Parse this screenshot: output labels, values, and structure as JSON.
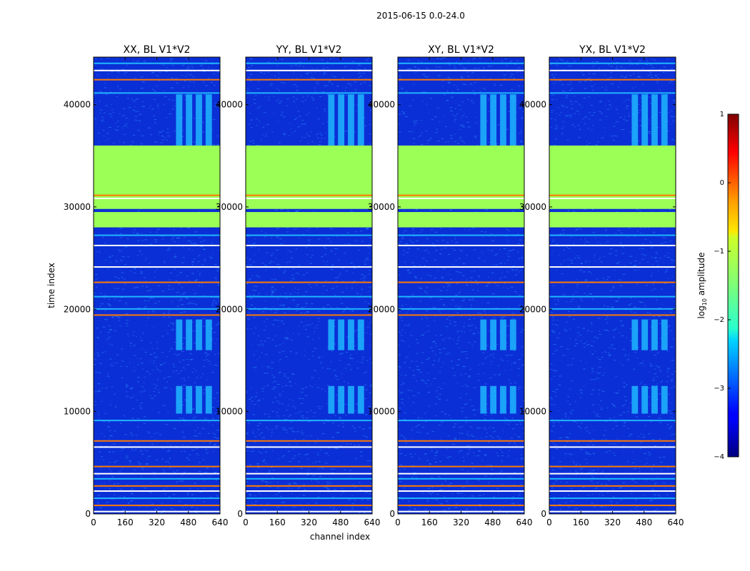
{
  "figure": {
    "suptitle": "2015-06-15 0.0-24.0",
    "xlabel": "channel index",
    "ylabel": "time index"
  },
  "chart_data": [
    {
      "type": "heatmap",
      "title": "XX, BL V1*V2",
      "x_range": [
        0,
        640
      ],
      "y_range": [
        0,
        44640
      ],
      "x_ticks": [
        0,
        160,
        320,
        480,
        640
      ],
      "y_ticks": [
        0,
        10000,
        20000,
        30000,
        40000
      ],
      "rfi_channels": [
        [
          410,
          610
        ]
      ],
      "rfi_periods": [
        [
          36000,
          41000
        ],
        [
          16000,
          19000
        ],
        [
          9800,
          12500
        ]
      ],
      "flagged_periods": [
        [
          28000,
          29500
        ],
        [
          29800,
          36000
        ]
      ]
    },
    {
      "type": "heatmap",
      "title": "YY, BL V1*V2",
      "x_range": [
        0,
        640
      ],
      "y_range": [
        0,
        44640
      ],
      "x_ticks": [
        0,
        160,
        320,
        480,
        640
      ],
      "y_ticks": [
        0,
        10000,
        20000,
        30000,
        40000
      ],
      "rfi_channels": [
        [
          410,
          610
        ]
      ],
      "rfi_periods": [
        [
          36000,
          41000
        ],
        [
          16000,
          19000
        ],
        [
          9800,
          12500
        ]
      ],
      "flagged_periods": [
        [
          28000,
          29500
        ],
        [
          29800,
          36000
        ]
      ]
    },
    {
      "type": "heatmap",
      "title": "XY, BL V1*V2",
      "x_range": [
        0,
        640
      ],
      "y_range": [
        0,
        44640
      ],
      "x_ticks": [
        0,
        160,
        320,
        480,
        640
      ],
      "y_ticks": [
        0,
        10000,
        20000,
        30000,
        40000
      ],
      "rfi_channels": [
        [
          410,
          610
        ]
      ],
      "rfi_periods": [
        [
          36000,
          41000
        ],
        [
          16000,
          19000
        ],
        [
          9800,
          12500
        ]
      ],
      "flagged_periods": [
        [
          28000,
          29500
        ],
        [
          29800,
          36000
        ]
      ]
    },
    {
      "type": "heatmap",
      "title": "YX, BL V1*V2",
      "x_range": [
        0,
        640
      ],
      "y_range": [
        0,
        44640
      ],
      "x_ticks": [
        0,
        160,
        320,
        480,
        640
      ],
      "y_ticks": [
        0,
        10000,
        20000,
        30000,
        40000
      ],
      "rfi_channels": [
        [
          410,
          610
        ]
      ],
      "rfi_periods": [
        [
          36000,
          41000
        ],
        [
          16000,
          19000
        ],
        [
          9800,
          12500
        ]
      ],
      "flagged_periods": [
        [
          28000,
          29500
        ],
        [
          29800,
          36000
        ]
      ]
    }
  ],
  "colorbar": {
    "label_prefix": "log",
    "label_sub": "10",
    "label_suffix": " amplitude",
    "range": [
      -4,
      1
    ],
    "ticks": [
      "1",
      "0",
      "−1",
      "−2",
      "−3",
      "−4"
    ],
    "tick_values": [
      1,
      0,
      -1,
      -2,
      -3,
      -4
    ],
    "colormap": "jet"
  },
  "colors": {
    "background": "#0b2fd6",
    "flag": "#9bff55",
    "rfi": "#ff7a00",
    "mid": "#1fb6ff",
    "noise": "#2a8cff"
  }
}
